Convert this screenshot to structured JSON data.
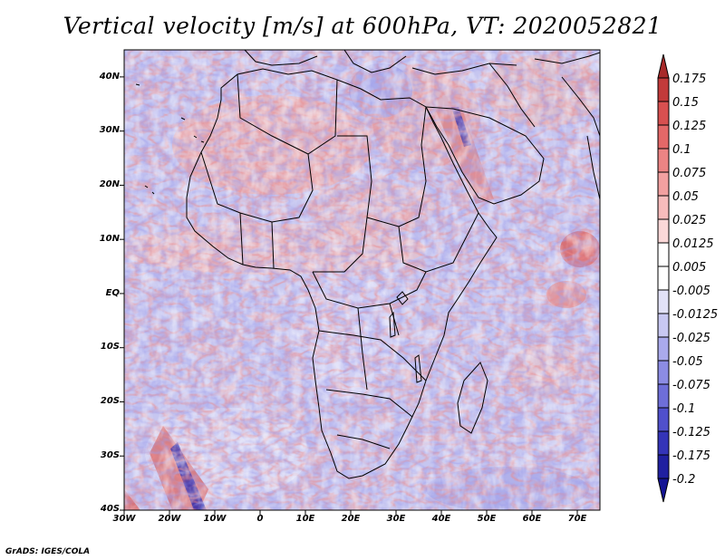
{
  "title": "Vertical velocity [m/s] at 600hPa, VT: 2020052821",
  "credit": "GrADS: IGES/COLA",
  "map": {
    "latitude_labels": [
      "40N",
      "30N",
      "20N",
      "10N",
      "EQ",
      "10S",
      "20S",
      "30S",
      "40S"
    ],
    "longitude_labels": [
      "30W",
      "20W",
      "10W",
      "0",
      "10E",
      "20E",
      "30E",
      "40E",
      "50E",
      "60E",
      "70E"
    ],
    "lat_range": [
      -40,
      45
    ],
    "lon_range": [
      -30,
      75
    ]
  },
  "colorbar": {
    "labels": [
      "0.175",
      "0.15",
      "0.125",
      "0.1",
      "0.075",
      "0.05",
      "0.025",
      "0.0125",
      "0.005",
      "-0.005",
      "-0.0125",
      "-0.025",
      "-0.05",
      "-0.075",
      "-0.1",
      "-0.125",
      "-0.175",
      "-0.2"
    ],
    "colors": [
      "#a82a2a",
      "#c23a3a",
      "#d85050",
      "#e46868",
      "#ec8484",
      "#f2a0a0",
      "#f7bcbc",
      "#fbd8d8",
      "#ffffff",
      "#ffffff",
      "#e2e2f8",
      "#c8c8f2",
      "#aaaaec",
      "#8c8ce4",
      "#6e6ed8",
      "#5050cc",
      "#3434b8",
      "#2020a0",
      "#141494"
    ]
  }
}
